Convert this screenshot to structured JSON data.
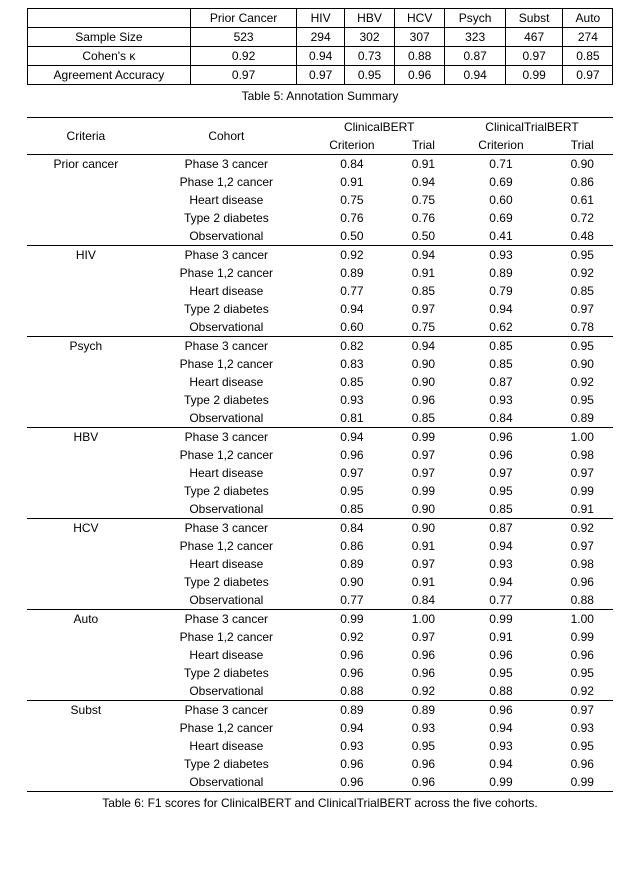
{
  "table5": {
    "caption": "Table 5: Annotation Summary",
    "columns": [
      "Prior Cancer",
      "HIV",
      "HBV",
      "HCV",
      "Psych",
      "Subst",
      "Auto"
    ],
    "rows": [
      {
        "label": "Sample Size",
        "vals": [
          "523",
          "294",
          "302",
          "307",
          "323",
          "467",
          "274"
        ]
      },
      {
        "label": "Cohen's κ",
        "vals": [
          "0.92",
          "0.94",
          "0.73",
          "0.88",
          "0.87",
          "0.97",
          "0.85"
        ]
      },
      {
        "label": "Agreement Accuracy",
        "vals": [
          "0.97",
          "0.97",
          "0.95",
          "0.96",
          "0.94",
          "0.99",
          "0.97"
        ]
      }
    ]
  },
  "table6": {
    "caption": "Table 6: F1 scores for ClinicalBERT and ClinicalTrialBERT across the five cohorts.",
    "header": {
      "criteria": "Criteria",
      "cohort": "Cohort",
      "model1": "ClinicalBERT",
      "model2": "ClinicalTrialBERT",
      "sub1": "Criterion",
      "sub2": "Trial"
    },
    "cohorts": [
      "Phase 3 cancer",
      "Phase 1,2 cancer",
      "Heart disease",
      "Type 2 diabetes",
      "Observational"
    ],
    "groups": [
      {
        "criteria": "Prior cancer",
        "rows": [
          [
            "0.84",
            "0.91",
            "0.71",
            "0.90"
          ],
          [
            "0.91",
            "0.94",
            "0.69",
            "0.86"
          ],
          [
            "0.75",
            "0.75",
            "0.60",
            "0.61"
          ],
          [
            "0.76",
            "0.76",
            "0.69",
            "0.72"
          ],
          [
            "0.50",
            "0.50",
            "0.41",
            "0.48"
          ]
        ]
      },
      {
        "criteria": "HIV",
        "rows": [
          [
            "0.92",
            "0.94",
            "0.93",
            "0.95"
          ],
          [
            "0.89",
            "0.91",
            "0.89",
            "0.92"
          ],
          [
            "0.77",
            "0.85",
            "0.79",
            "0.85"
          ],
          [
            "0.94",
            "0.97",
            "0.94",
            "0.97"
          ],
          [
            "0.60",
            "0.75",
            "0.62",
            "0.78"
          ]
        ]
      },
      {
        "criteria": "Psych",
        "rows": [
          [
            "0.82",
            "0.94",
            "0.85",
            "0.95"
          ],
          [
            "0.83",
            "0.90",
            "0.85",
            "0.90"
          ],
          [
            "0.85",
            "0.90",
            "0.87",
            "0.92"
          ],
          [
            "0.93",
            "0.96",
            "0.93",
            "0.95"
          ],
          [
            "0.81",
            "0.85",
            "0.84",
            "0.89"
          ]
        ]
      },
      {
        "criteria": "HBV",
        "rows": [
          [
            "0.94",
            "0.99",
            "0.96",
            "1.00"
          ],
          [
            "0.96",
            "0.97",
            "0.96",
            "0.98"
          ],
          [
            "0.97",
            "0.97",
            "0.97",
            "0.97"
          ],
          [
            "0.95",
            "0.99",
            "0.95",
            "0.99"
          ],
          [
            "0.85",
            "0.90",
            "0.85",
            "0.91"
          ]
        ]
      },
      {
        "criteria": "HCV",
        "rows": [
          [
            "0.84",
            "0.90",
            "0.87",
            "0.92"
          ],
          [
            "0.86",
            "0.91",
            "0.94",
            "0.97"
          ],
          [
            "0.89",
            "0.97",
            "0.93",
            "0.98"
          ],
          [
            "0.90",
            "0.91",
            "0.94",
            "0.96"
          ],
          [
            "0.77",
            "0.84",
            "0.77",
            "0.88"
          ]
        ]
      },
      {
        "criteria": "Auto",
        "rows": [
          [
            "0.99",
            "1.00",
            "0.99",
            "1.00"
          ],
          [
            "0.92",
            "0.97",
            "0.91",
            "0.99"
          ],
          [
            "0.96",
            "0.96",
            "0.96",
            "0.96"
          ],
          [
            "0.96",
            "0.96",
            "0.95",
            "0.95"
          ],
          [
            "0.88",
            "0.92",
            "0.88",
            "0.92"
          ]
        ]
      },
      {
        "criteria": "Subst",
        "rows": [
          [
            "0.89",
            "0.89",
            "0.96",
            "0.97"
          ],
          [
            "0.94",
            "0.93",
            "0.94",
            "0.93"
          ],
          [
            "0.93",
            "0.95",
            "0.93",
            "0.95"
          ],
          [
            "0.96",
            "0.96",
            "0.94",
            "0.96"
          ],
          [
            "0.96",
            "0.96",
            "0.99",
            "0.99"
          ]
        ]
      }
    ]
  }
}
